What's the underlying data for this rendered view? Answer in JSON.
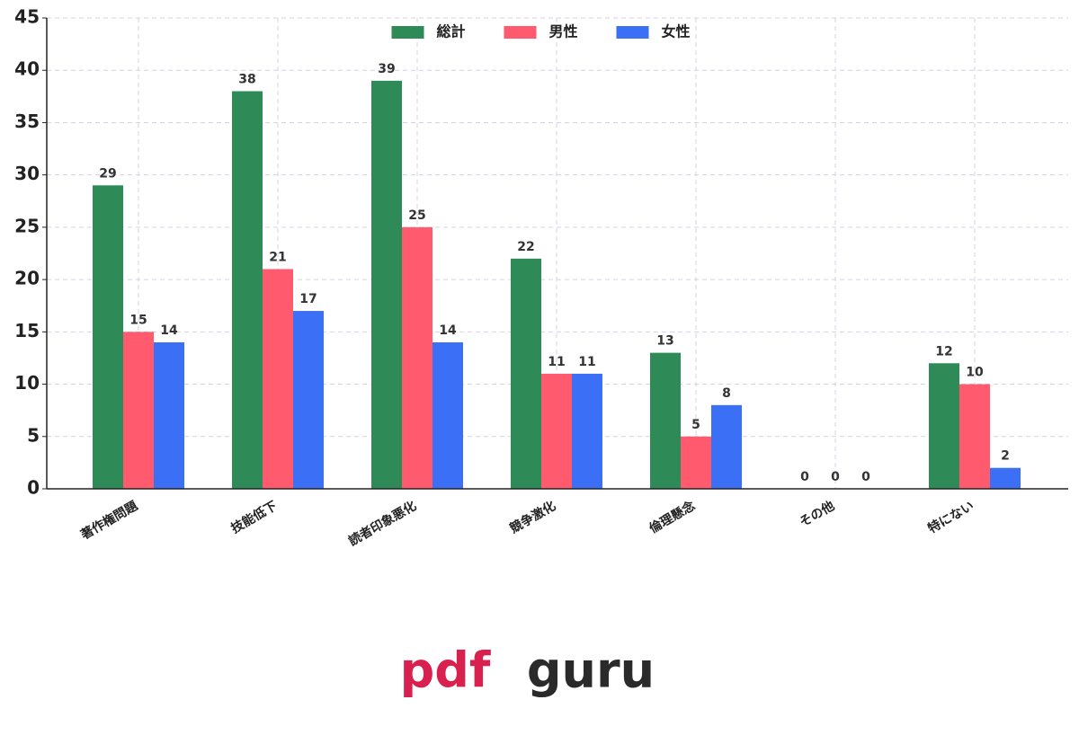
{
  "chart_data": {
    "type": "bar",
    "categories": [
      "著作権問題",
      "技能低下",
      "読者印象悪化",
      "競争激化",
      "倫理懸念",
      "その他",
      "特にない"
    ],
    "series": [
      {
        "name": "総計",
        "color": "#2e8b57",
        "values": [
          29,
          38,
          39,
          22,
          13,
          0,
          12
        ]
      },
      {
        "name": "男性",
        "color": "#ff5a6e",
        "values": [
          15,
          21,
          25,
          11,
          5,
          0,
          10
        ]
      },
      {
        "name": "女性",
        "color": "#3b6ff5",
        "values": [
          14,
          17,
          14,
          11,
          8,
          0,
          2
        ]
      }
    ],
    "ylim": [
      0,
      45
    ],
    "yticks": [
      0,
      5,
      10,
      15,
      20,
      25,
      30,
      35,
      40,
      45
    ],
    "grid": true,
    "legend": "upper center"
  },
  "logo": [
    "pdf",
    "guru"
  ]
}
